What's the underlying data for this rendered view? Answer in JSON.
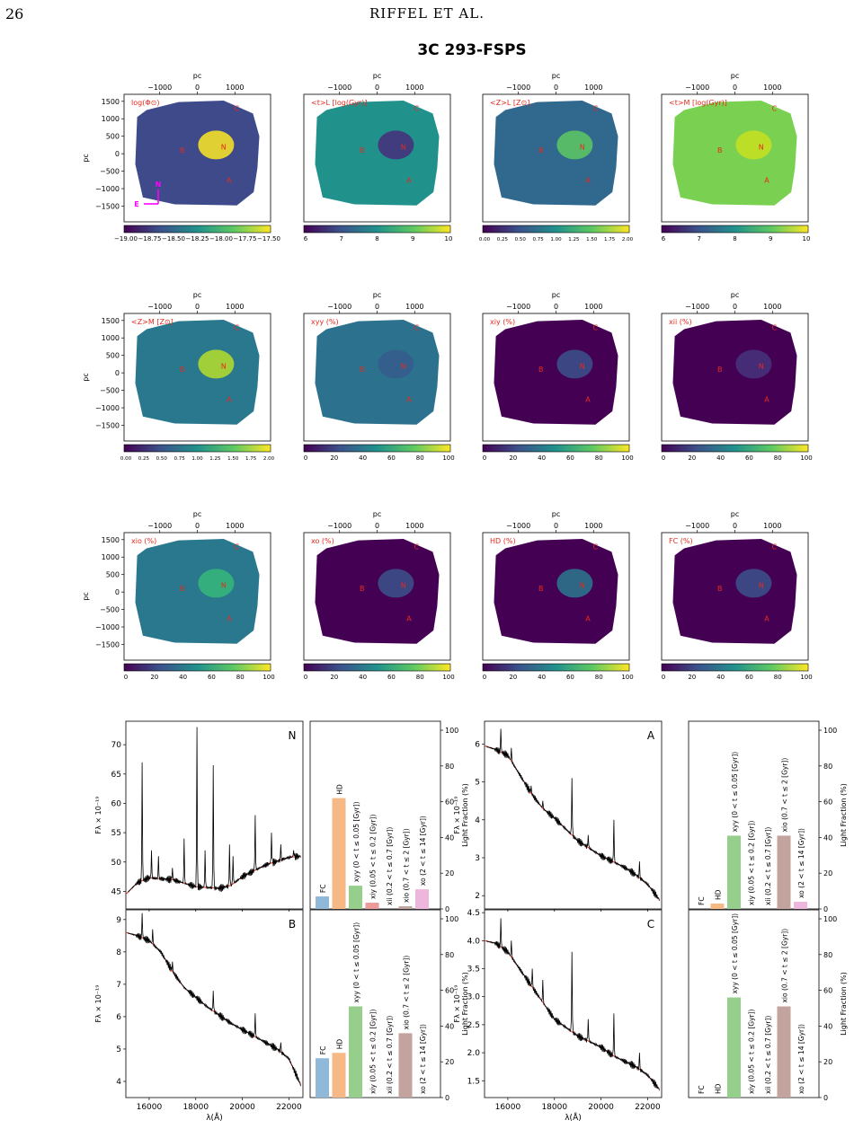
{
  "page": {
    "number": "26",
    "running_head": "RIFFEL ET AL.",
    "figure_title": "3C 293-FSPS"
  },
  "maps": {
    "axis_label": "pc",
    "ticks": [
      "−1000",
      "0",
      "1000"
    ],
    "yticks": [
      "1500",
      "1000",
      "500",
      "0",
      "−500",
      "−1000",
      "−1500"
    ],
    "markers": [
      "C",
      "B",
      "N",
      "A"
    ],
    "compass": {
      "north": "N",
      "east": "E"
    },
    "panels": [
      {
        "label": "log(Φ⊙)",
        "cbar": [
          "−19.00",
          "−18.75",
          "−18.50",
          "−18.25",
          "−18.00",
          "−17.75",
          "−17.50"
        ],
        "palette": "mass"
      },
      {
        "label": "<t>L [log(Gyr)]",
        "cbar": [
          "6",
          "7",
          "8",
          "9",
          "10"
        ],
        "palette": "ageL"
      },
      {
        "label": "<Z>L [Z⊙]",
        "cbar": [
          "0.00",
          "0.25",
          "0.50",
          "0.75",
          "1.00",
          "1.25",
          "1.50",
          "1.75",
          "2.00"
        ],
        "palette": "zL"
      },
      {
        "label": "<t>M [log(Gyr)]",
        "cbar": [
          "6",
          "7",
          "8",
          "9",
          "10"
        ],
        "palette": "ageM"
      },
      {
        "label": "<Z>M [Z⊙]",
        "cbar": [
          "0.00",
          "0.25",
          "0.50",
          "0.75",
          "1.00",
          "1.25",
          "1.50",
          "1.75",
          "2.00"
        ],
        "palette": "zM"
      },
      {
        "label": "xyy (%)",
        "cbar": [
          "0",
          "20",
          "40",
          "60",
          "80",
          "100"
        ],
        "palette": "xyy"
      },
      {
        "label": "xiy (%)",
        "cbar": [
          "0",
          "20",
          "40",
          "60",
          "80",
          "100"
        ],
        "palette": "low"
      },
      {
        "label": "xii (%)",
        "cbar": [
          "0",
          "20",
          "40",
          "60",
          "80",
          "100"
        ],
        "palette": "vlow"
      },
      {
        "label": "xio (%)",
        "cbar": [
          "0",
          "20",
          "40",
          "60",
          "80",
          "100"
        ],
        "palette": "xio"
      },
      {
        "label": "xo (%)",
        "cbar": [
          "0",
          "20",
          "40",
          "60",
          "80",
          "100"
        ],
        "palette": "low"
      },
      {
        "label": "HD (%)",
        "cbar": [
          "0",
          "20",
          "40",
          "60",
          "80",
          "100"
        ],
        "palette": "hd"
      },
      {
        "label": "FC (%)",
        "cbar": [
          "0",
          "20",
          "40",
          "60",
          "80",
          "100"
        ],
        "palette": "fc"
      }
    ]
  },
  "chart_data": {
    "type": "line",
    "xlabel": "λ(Å)",
    "ylabel": "Fλ × 10⁻¹⁹",
    "xlim": [
      15000,
      22600
    ],
    "xticks": [
      16000,
      18000,
      20000,
      22000
    ],
    "bar_ylabel": "Light Fraction (%)",
    "bar_ylim": [
      0,
      100
    ],
    "bar_yticks": [
      0,
      20,
      40,
      60,
      80,
      100
    ],
    "bar_categories": [
      "FC",
      "HD",
      "xyy (0 < t ≤ 0.05 [Gyr])",
      "xiy (0.05 < t ≤ 0.2 [Gyr])",
      "xii (0.2 < t ≤ 0.7 [Gyr])",
      "xio (0.7 < t ≤ 2 [Gyr])",
      "xo (2 < t ≤ 14 [Gyr])"
    ],
    "bar_colors": [
      "#8fb8d9",
      "#f6b884",
      "#96ce8c",
      "#ec9b9b",
      "#c6b0d3",
      "#c2a39d",
      "#eeb5dd"
    ],
    "model_color": "#e8291c",
    "observed_color": "#000000",
    "regions": [
      {
        "name": "N",
        "ylim": [
          42,
          74
        ],
        "yticks": [
          45,
          50,
          55,
          60,
          65,
          70
        ],
        "ytick_labels": [
          "45",
          "50",
          "55",
          "60",
          "65",
          "70"
        ],
        "continuum": [
          [
            15000,
            44.5
          ],
          [
            15500,
            46.5
          ],
          [
            16000,
            47.3
          ],
          [
            17000,
            47.0
          ],
          [
            18000,
            45.8
          ],
          [
            19000,
            45.5
          ],
          [
            19500,
            46.0
          ],
          [
            20000,
            47.5
          ],
          [
            21000,
            49.5
          ],
          [
            22000,
            50.8
          ],
          [
            22500,
            51.0
          ]
        ],
        "lines": [
          [
            15700,
            67
          ],
          [
            16100,
            52
          ],
          [
            16400,
            51
          ],
          [
            17000,
            49
          ],
          [
            17500,
            54
          ],
          [
            18050,
            73
          ],
          [
            18400,
            52
          ],
          [
            18750,
            66.5
          ],
          [
            19450,
            53
          ],
          [
            19600,
            51
          ],
          [
            20550,
            58
          ],
          [
            21250,
            55
          ],
          [
            21650,
            53
          ],
          [
            22200,
            52
          ]
        ],
        "bars": [
          7,
          62,
          13,
          3.5,
          0,
          1.5,
          11
        ]
      },
      {
        "name": "A",
        "ylim": [
          1.65,
          6.6
        ],
        "yticks": [
          2,
          3,
          4,
          5,
          6
        ],
        "ytick_labels": [
          "2",
          "3",
          "4",
          "5",
          "6"
        ],
        "continuum": [
          [
            15000,
            5.95
          ],
          [
            15500,
            5.85
          ],
          [
            16000,
            5.7
          ],
          [
            16500,
            5.2
          ],
          [
            17000,
            4.7
          ],
          [
            17500,
            4.3
          ],
          [
            18000,
            4.05
          ],
          [
            18500,
            3.75
          ],
          [
            19000,
            3.45
          ],
          [
            19500,
            3.25
          ],
          [
            20000,
            3.05
          ],
          [
            20500,
            2.9
          ],
          [
            21000,
            2.75
          ],
          [
            21500,
            2.55
          ],
          [
            22000,
            2.3
          ],
          [
            22500,
            1.9
          ]
        ],
        "lines": [
          [
            15700,
            6.4
          ],
          [
            16150,
            5.9
          ],
          [
            17000,
            4.9
          ],
          [
            17500,
            4.5
          ],
          [
            18750,
            5.1
          ],
          [
            19450,
            3.6
          ],
          [
            20550,
            4.0
          ],
          [
            21650,
            2.9
          ]
        ],
        "bars": [
          0,
          3,
          41,
          0,
          0,
          41,
          4
        ]
      },
      {
        "name": "B",
        "ylim": [
          3.5,
          9.3
        ],
        "yticks": [
          4,
          5,
          6,
          7,
          8,
          9
        ],
        "ytick_labels": [
          "4",
          "5",
          "6",
          "7",
          "8",
          "9"
        ],
        "continuum": [
          [
            15000,
            8.6
          ],
          [
            15500,
            8.5
          ],
          [
            16000,
            8.35
          ],
          [
            16500,
            8.0
          ],
          [
            17000,
            7.4
          ],
          [
            17500,
            6.9
          ],
          [
            18000,
            6.6
          ],
          [
            18500,
            6.3
          ],
          [
            19000,
            6.05
          ],
          [
            19500,
            5.8
          ],
          [
            20000,
            5.6
          ],
          [
            20500,
            5.4
          ],
          [
            21000,
            5.2
          ],
          [
            21500,
            5.0
          ],
          [
            22000,
            4.7
          ],
          [
            22500,
            3.9
          ]
        ],
        "lines": [
          [
            15700,
            9.2
          ],
          [
            16150,
            8.7
          ],
          [
            17000,
            7.7
          ],
          [
            18750,
            6.8
          ],
          [
            20550,
            6.1
          ],
          [
            21650,
            5.2
          ]
        ],
        "bars": [
          22,
          25,
          51,
          0,
          0,
          36,
          0
        ]
      },
      {
        "name": "C",
        "ylim": [
          1.2,
          4.55
        ],
        "yticks": [
          1.5,
          2.0,
          2.5,
          3.0,
          3.5,
          4.0,
          4.5
        ],
        "ytick_labels": [
          "1.5",
          "2.0",
          "2.5",
          "3.0",
          "3.5",
          "4.0",
          "4.5"
        ],
        "continuum": [
          [
            15000,
            4.0
          ],
          [
            15500,
            3.95
          ],
          [
            16000,
            3.8
          ],
          [
            16500,
            3.5
          ],
          [
            17000,
            3.2
          ],
          [
            17500,
            2.9
          ],
          [
            18000,
            2.6
          ],
          [
            18500,
            2.45
          ],
          [
            19000,
            2.3
          ],
          [
            19500,
            2.2
          ],
          [
            20000,
            2.1
          ],
          [
            20500,
            1.95
          ],
          [
            21000,
            1.85
          ],
          [
            21500,
            1.75
          ],
          [
            22000,
            1.6
          ],
          [
            22500,
            1.35
          ]
        ],
        "lines": [
          [
            15700,
            4.4
          ],
          [
            16150,
            4.0
          ],
          [
            17050,
            3.5
          ],
          [
            17500,
            3.3
          ],
          [
            18750,
            3.8
          ],
          [
            19450,
            2.6
          ],
          [
            20550,
            2.7
          ],
          [
            21650,
            2.0
          ]
        ],
        "bars": [
          0,
          0,
          56,
          0,
          0,
          51,
          0
        ]
      }
    ]
  }
}
